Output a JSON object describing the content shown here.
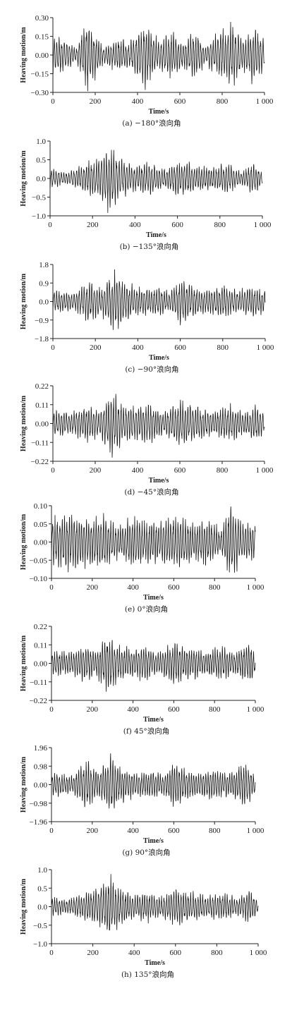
{
  "chart_data": [
    {
      "type": "line",
      "id": "a",
      "caption": "(a) −180°浪向角",
      "xlabel": "Time/s",
      "ylabel": "Heaving motion/m",
      "xlim": [
        0,
        1000
      ],
      "ylim": [
        -0.3,
        0.3
      ],
      "xticks": [
        "0",
        "200",
        "400",
        "600",
        "800",
        "1 000"
      ],
      "yticks": [
        "−0.30",
        "−0.15",
        "0.00",
        "0.15",
        "0.30"
      ],
      "amplitude": 0.27,
      "envelope": [
        {
          "t": 0,
          "a": 0.14
        },
        {
          "t": 60,
          "a": 0.12
        },
        {
          "t": 110,
          "a": 0.05
        },
        {
          "t": 160,
          "a": 0.27
        },
        {
          "t": 200,
          "a": 0.18
        },
        {
          "t": 240,
          "a": 0.06
        },
        {
          "t": 300,
          "a": 0.13
        },
        {
          "t": 360,
          "a": 0.09
        },
        {
          "t": 440,
          "a": 0.25
        },
        {
          "t": 500,
          "a": 0.1
        },
        {
          "t": 560,
          "a": 0.17
        },
        {
          "t": 620,
          "a": 0.1
        },
        {
          "t": 670,
          "a": 0.19
        },
        {
          "t": 720,
          "a": 0.07
        },
        {
          "t": 780,
          "a": 0.16
        },
        {
          "t": 850,
          "a": 0.24
        },
        {
          "t": 900,
          "a": 0.12
        },
        {
          "t": 950,
          "a": 0.21
        },
        {
          "t": 1000,
          "a": 0.12
        }
      ]
    },
    {
      "type": "line",
      "id": "b",
      "caption": "(b) −135°浪向角",
      "xlabel": "Time/s",
      "ylabel": "Heaving motion/m",
      "xlim": [
        0,
        1000
      ],
      "ylim": [
        -1.0,
        1.0
      ],
      "xticks": [
        "0",
        "200",
        "400",
        "600",
        "800",
        "1 000"
      ],
      "yticks": [
        "−1.0",
        "−0.5",
        "0.0",
        "0.5",
        "1.0"
      ],
      "amplitude": 0.8,
      "envelope": [
        {
          "t": 0,
          "a": 0.25
        },
        {
          "t": 80,
          "a": 0.15
        },
        {
          "t": 170,
          "a": 0.4
        },
        {
          "t": 230,
          "a": 0.55
        },
        {
          "t": 280,
          "a": 0.8
        },
        {
          "t": 330,
          "a": 0.5
        },
        {
          "t": 400,
          "a": 0.3
        },
        {
          "t": 470,
          "a": 0.4
        },
        {
          "t": 540,
          "a": 0.25
        },
        {
          "t": 600,
          "a": 0.45
        },
        {
          "t": 680,
          "a": 0.35
        },
        {
          "t": 760,
          "a": 0.28
        },
        {
          "t": 840,
          "a": 0.38
        },
        {
          "t": 900,
          "a": 0.15
        },
        {
          "t": 960,
          "a": 0.4
        },
        {
          "t": 1000,
          "a": 0.15
        }
      ]
    },
    {
      "type": "line",
      "id": "c",
      "caption": "(c) −90°浪向角",
      "xlabel": "Time/s",
      "ylabel": "Heaving motion/m",
      "xlim": [
        0,
        1000
      ],
      "ylim": [
        -1.8,
        1.8
      ],
      "xticks": [
        "0",
        "200",
        "400",
        "600",
        "800",
        "1 000"
      ],
      "yticks": [
        "−1.8",
        "−0.9",
        "0.0",
        "0.9",
        "1.8"
      ],
      "amplitude": 1.45,
      "envelope": [
        {
          "t": 0,
          "a": 0.5
        },
        {
          "t": 100,
          "a": 0.4
        },
        {
          "t": 170,
          "a": 0.9
        },
        {
          "t": 230,
          "a": 0.6
        },
        {
          "t": 290,
          "a": 1.45
        },
        {
          "t": 340,
          "a": 0.9
        },
        {
          "t": 420,
          "a": 0.6
        },
        {
          "t": 500,
          "a": 0.7
        },
        {
          "t": 550,
          "a": 0.4
        },
        {
          "t": 600,
          "a": 1.1
        },
        {
          "t": 650,
          "a": 0.7
        },
        {
          "t": 720,
          "a": 0.55
        },
        {
          "t": 800,
          "a": 0.75
        },
        {
          "t": 870,
          "a": 0.5
        },
        {
          "t": 950,
          "a": 0.7
        },
        {
          "t": 1000,
          "a": 0.5
        }
      ]
    },
    {
      "type": "line",
      "id": "d",
      "caption": "(d) −45°浪向角",
      "xlabel": "Time/s",
      "ylabel": "Heaving motion/m",
      "xlim": [
        0,
        1000
      ],
      "ylim": [
        -0.22,
        0.22
      ],
      "xticks": [
        "0",
        "200",
        "400",
        "600",
        "800",
        "1 000"
      ],
      "yticks": [
        "−0.22",
        "−0.11",
        "0.00",
        "0.11",
        "0.22"
      ],
      "amplitude": 0.18,
      "envelope": [
        {
          "t": 0,
          "a": 0.07
        },
        {
          "t": 80,
          "a": 0.06
        },
        {
          "t": 170,
          "a": 0.1
        },
        {
          "t": 220,
          "a": 0.07
        },
        {
          "t": 280,
          "a": 0.18
        },
        {
          "t": 330,
          "a": 0.1
        },
        {
          "t": 400,
          "a": 0.09
        },
        {
          "t": 460,
          "a": 0.11
        },
        {
          "t": 520,
          "a": 0.06
        },
        {
          "t": 600,
          "a": 0.13
        },
        {
          "t": 680,
          "a": 0.09
        },
        {
          "t": 760,
          "a": 0.07
        },
        {
          "t": 840,
          "a": 0.1
        },
        {
          "t": 900,
          "a": 0.06
        },
        {
          "t": 970,
          "a": 0.1
        },
        {
          "t": 1000,
          "a": 0.05
        }
      ]
    },
    {
      "type": "line",
      "id": "e",
      "caption": "(e) 0°浪向角",
      "xlabel": "Time/s",
      "ylabel": "Heaving motion/m",
      "xlim": [
        0,
        1000
      ],
      "ylim": [
        -0.1,
        0.1
      ],
      "xticks": [
        "0",
        "200",
        "400",
        "600",
        "800",
        "1 000"
      ],
      "yticks": [
        "−0.10",
        "−0.05",
        "0.00",
        "0.05",
        "0.10"
      ],
      "amplitude": 0.1,
      "envelope": [
        {
          "t": 0,
          "a": 0.06
        },
        {
          "t": 100,
          "a": 0.07
        },
        {
          "t": 200,
          "a": 0.06
        },
        {
          "t": 250,
          "a": 0.07
        },
        {
          "t": 330,
          "a": 0.04
        },
        {
          "t": 400,
          "a": 0.07
        },
        {
          "t": 480,
          "a": 0.05
        },
        {
          "t": 560,
          "a": 0.06
        },
        {
          "t": 620,
          "a": 0.07
        },
        {
          "t": 700,
          "a": 0.05
        },
        {
          "t": 780,
          "a": 0.06
        },
        {
          "t": 830,
          "a": 0.03
        },
        {
          "t": 880,
          "a": 0.1
        },
        {
          "t": 930,
          "a": 0.05
        },
        {
          "t": 980,
          "a": 0.05
        }
      ]
    },
    {
      "type": "line",
      "id": "f",
      "caption": "(f) 45°浪向角",
      "xlabel": "Time/s",
      "ylabel": "Heaving motion/m",
      "xlim": [
        0,
        1000
      ],
      "ylim": [
        -0.22,
        0.22
      ],
      "xticks": [
        "0",
        "200",
        "400",
        "600",
        "800",
        "1 000"
      ],
      "yticks": [
        "−0.22",
        "−0.11",
        "0.00",
        "0.11",
        "0.22"
      ],
      "amplitude": 0.17,
      "envelope": [
        {
          "t": 0,
          "a": 0.07
        },
        {
          "t": 80,
          "a": 0.06
        },
        {
          "t": 170,
          "a": 0.1
        },
        {
          "t": 220,
          "a": 0.07
        },
        {
          "t": 280,
          "a": 0.17
        },
        {
          "t": 330,
          "a": 0.1
        },
        {
          "t": 400,
          "a": 0.08
        },
        {
          "t": 460,
          "a": 0.1
        },
        {
          "t": 520,
          "a": 0.06
        },
        {
          "t": 600,
          "a": 0.12
        },
        {
          "t": 680,
          "a": 0.09
        },
        {
          "t": 760,
          "a": 0.07
        },
        {
          "t": 840,
          "a": 0.09
        },
        {
          "t": 900,
          "a": 0.06
        },
        {
          "t": 970,
          "a": 0.13
        },
        {
          "t": 1000,
          "a": 0.05
        }
      ]
    },
    {
      "type": "line",
      "id": "g",
      "caption": "(g) 90°浪向角",
      "xlabel": "Time/s",
      "ylabel": "Heaving motion/m",
      "xlim": [
        0,
        1000
      ],
      "ylim": [
        -1.96,
        1.96
      ],
      "xticks": [
        "0",
        "200",
        "400",
        "600",
        "800",
        "1 000"
      ],
      "yticks": [
        "−1.96",
        "−0.98",
        "0.00",
        "0.98",
        "1.96"
      ],
      "amplitude": 1.45,
      "envelope": [
        {
          "t": 0,
          "a": 0.6
        },
        {
          "t": 100,
          "a": 0.45
        },
        {
          "t": 170,
          "a": 1.2
        },
        {
          "t": 230,
          "a": 0.7
        },
        {
          "t": 290,
          "a": 1.45
        },
        {
          "t": 340,
          "a": 0.9
        },
        {
          "t": 420,
          "a": 0.55
        },
        {
          "t": 500,
          "a": 0.75
        },
        {
          "t": 550,
          "a": 0.45
        },
        {
          "t": 600,
          "a": 1.3
        },
        {
          "t": 650,
          "a": 0.8
        },
        {
          "t": 720,
          "a": 0.6
        },
        {
          "t": 800,
          "a": 0.8
        },
        {
          "t": 870,
          "a": 0.55
        },
        {
          "t": 950,
          "a": 1.1
        },
        {
          "t": 1000,
          "a": 0.5
        }
      ]
    },
    {
      "type": "line",
      "id": "h",
      "caption": "(h) 135°浪向角",
      "xlabel": "Time/s",
      "ylabel": "Heaving motion/m",
      "xlim": [
        0,
        1000
      ],
      "ylim": [
        -1.0,
        1.0
      ],
      "xticks": [
        "0",
        "200",
        "400",
        "600",
        "800",
        "1 000"
      ],
      "yticks": [
        "−1.0",
        "−0.5",
        "0.0",
        "0.5",
        "1.0"
      ],
      "amplitude": 0.82,
      "envelope": [
        {
          "t": 0,
          "a": 0.25
        },
        {
          "t": 80,
          "a": 0.18
        },
        {
          "t": 170,
          "a": 0.4
        },
        {
          "t": 230,
          "a": 0.5
        },
        {
          "t": 285,
          "a": 0.82
        },
        {
          "t": 330,
          "a": 0.5
        },
        {
          "t": 400,
          "a": 0.3
        },
        {
          "t": 470,
          "a": 0.38
        },
        {
          "t": 540,
          "a": 0.28
        },
        {
          "t": 600,
          "a": 0.48
        },
        {
          "t": 680,
          "a": 0.35
        },
        {
          "t": 760,
          "a": 0.28
        },
        {
          "t": 840,
          "a": 0.38
        },
        {
          "t": 900,
          "a": 0.2
        },
        {
          "t": 960,
          "a": 0.45
        },
        {
          "t": 1000,
          "a": 0.15
        }
      ]
    }
  ]
}
